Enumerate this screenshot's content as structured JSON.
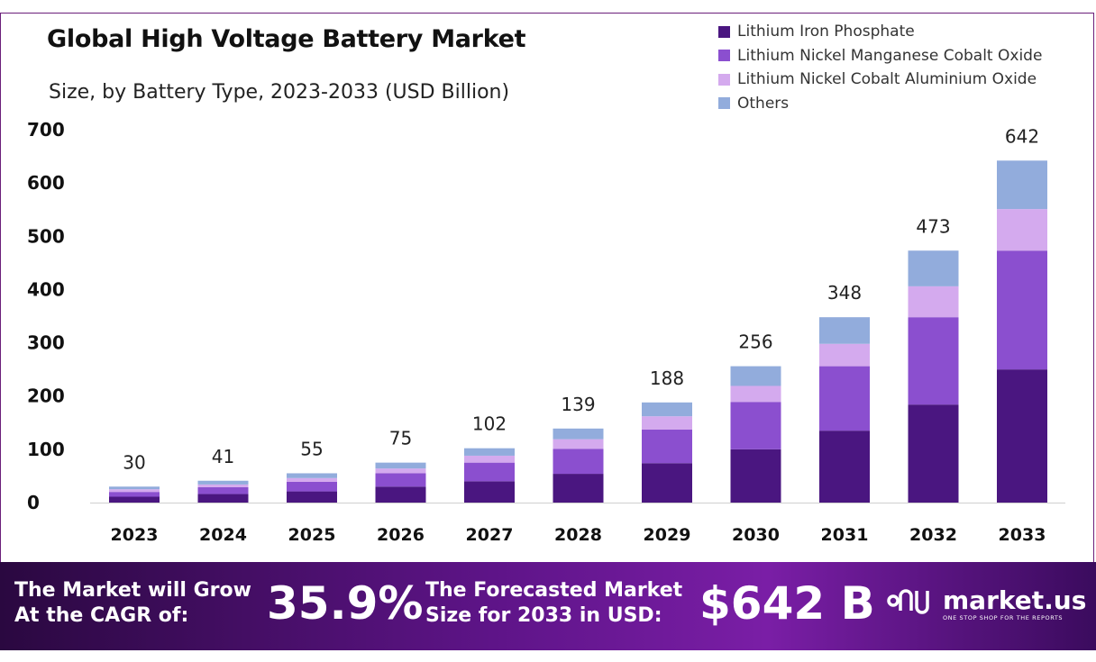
{
  "title": "Global High Voltage Battery Market",
  "subtitle": "Size, by Battery Type, 2023-2033 (USD Billion)",
  "legend": [
    {
      "label": "Lithium Iron Phosphate",
      "color": "#4a1680"
    },
    {
      "label": "Lithium Nickel Manganese Cobalt Oxide",
      "color": "#8b4fcf"
    },
    {
      "label": "Lithium Nickel Cobalt Aluminium Oxide",
      "color": "#d4aaee"
    },
    {
      "label": "Others",
      "color": "#92acdc"
    }
  ],
  "chart_data": {
    "type": "bar",
    "stacked": true,
    "categories": [
      "2023",
      "2024",
      "2025",
      "2026",
      "2027",
      "2028",
      "2029",
      "2030",
      "2031",
      "2032",
      "2033"
    ],
    "series": [
      {
        "name": "Lithium Iron Phosphate",
        "color": "#4a1680",
        "values": [
          11,
          16,
          21,
          30,
          40,
          54,
          74,
          100,
          135,
          184,
          250
        ]
      },
      {
        "name": "Lithium Nickel Manganese Cobalt Oxide",
        "color": "#8b4fcf",
        "values": [
          9,
          13,
          18,
          25,
          35,
          47,
          63,
          89,
          121,
          164,
          223
        ]
      },
      {
        "name": "Lithium Nickel Cobalt Aluminium Oxide",
        "color": "#d4aaee",
        "values": [
          5,
          5,
          7,
          9,
          13,
          18,
          25,
          30,
          42,
          58,
          78
        ]
      },
      {
        "name": "Others",
        "color": "#92acdc",
        "values": [
          5,
          7,
          9,
          11,
          14,
          20,
          26,
          37,
          50,
          67,
          91
        ]
      }
    ],
    "totals": [
      30,
      41,
      55,
      75,
      102,
      139,
      188,
      256,
      348,
      473,
      642
    ],
    "yticks": [
      0,
      100,
      200,
      300,
      400,
      500,
      600,
      700
    ],
    "ylim": [
      0,
      700
    ],
    "grid": false,
    "legend_position": "top-right",
    "xlabel": "",
    "ylabel": ""
  },
  "footer": {
    "cagr_text_line1": "The Market will Grow",
    "cagr_text_line2": "At the CAGR of:",
    "cagr_value": "35.9%",
    "forecast_text_line1": "The Forecasted Market",
    "forecast_text_line2": "Size for 2033 in USD:",
    "forecast_value": "$642 B",
    "brand_name": "market.us",
    "brand_tagline": "ONE STOP SHOP FOR THE REPORTS"
  }
}
